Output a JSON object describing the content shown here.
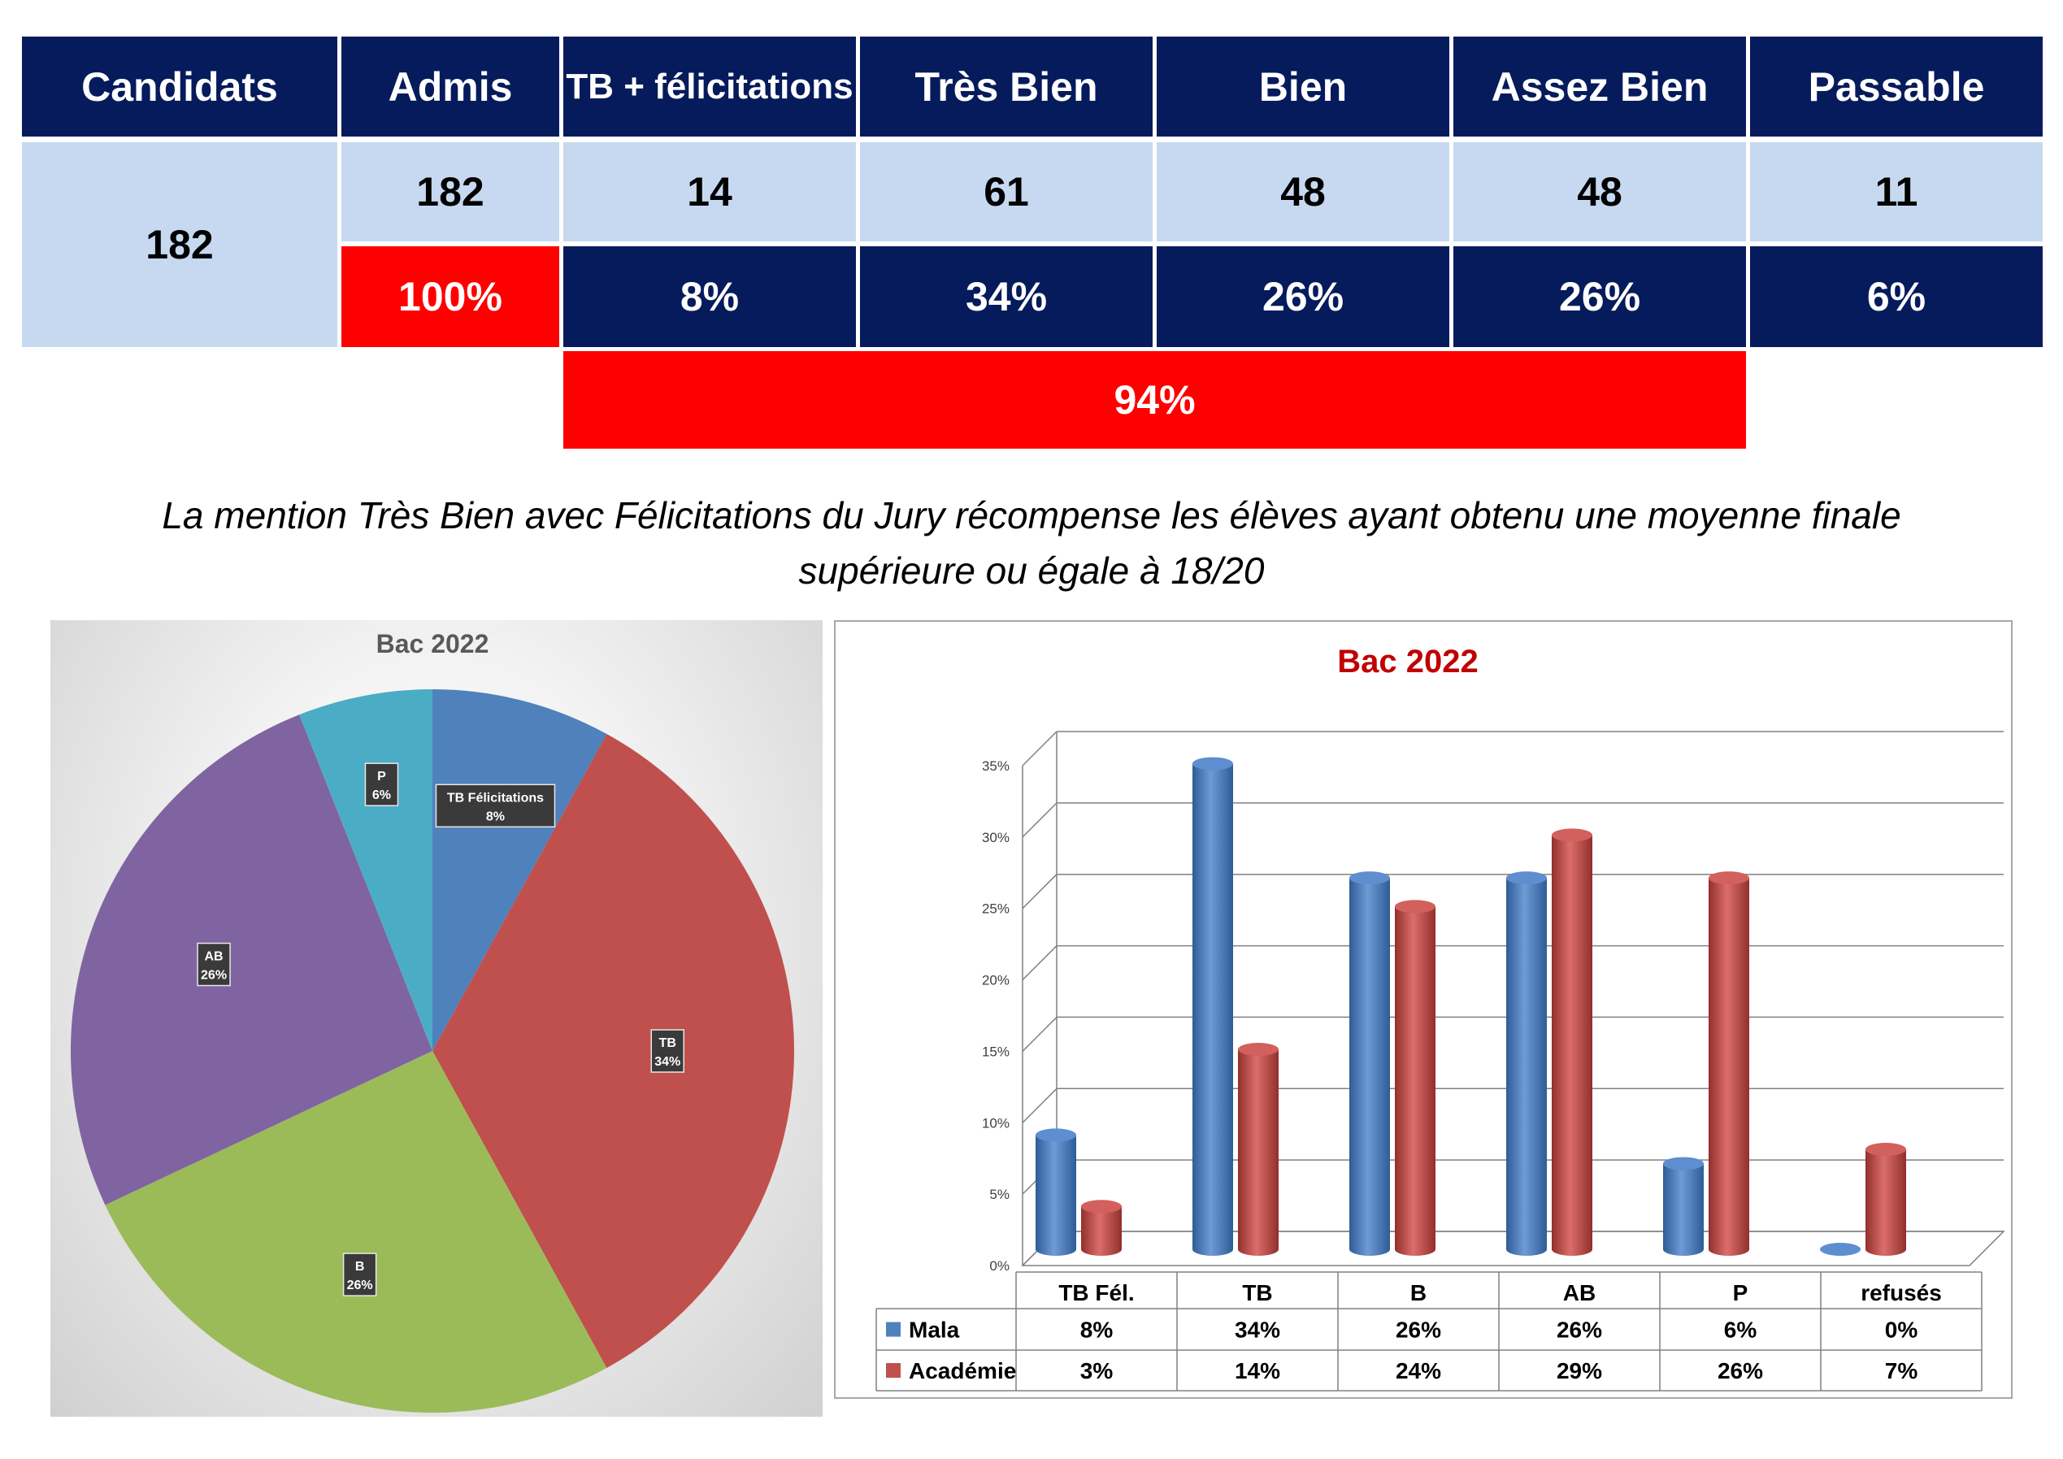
{
  "table": {
    "headers": [
      "Candidats",
      "Admis",
      "TB + félicitations",
      "Très Bien",
      "Bien",
      "Assez Bien",
      "Passable"
    ],
    "candidats": "182",
    "counts": [
      "182",
      "14",
      "61",
      "48",
      "48",
      "11"
    ],
    "percents": [
      "100%",
      "8%",
      "34%",
      "26%",
      "26%",
      "6%"
    ],
    "mention_total": "94%"
  },
  "caption": {
    "line1": "La mention Très Bien avec Félicitations du Jury récompense les élèves ayant obtenu une moyenne finale",
    "line2": "supérieure ou égale à 18/20"
  },
  "colors": {
    "navy": "#061B5C",
    "light_blue": "#C6D9F1",
    "red": "#FF0000",
    "pie_tbf": "#4F81BD",
    "pie_tb": "#C0504D",
    "pie_b": "#9BBB59",
    "pie_ab": "#8064A2",
    "pie_p": "#4BACC6",
    "bar_mala": "#4F81BD",
    "bar_academie": "#C0504D"
  },
  "chart_data": [
    {
      "type": "pie",
      "title": "Bac 2022",
      "slices": [
        {
          "label": "TB Félicitations",
          "value": 8,
          "display": "8%"
        },
        {
          "label": "TB",
          "value": 34,
          "display": "34%"
        },
        {
          "label": "B",
          "value": 26,
          "display": "26%"
        },
        {
          "label": "AB",
          "value": 26,
          "display": "26%"
        },
        {
          "label": "P",
          "value": 6,
          "display": "6%"
        }
      ]
    },
    {
      "type": "bar",
      "title": "Bac 2022",
      "categories": [
        "TB Fél.",
        "TB",
        "B",
        "AB",
        "P",
        "refusés"
      ],
      "series": [
        {
          "name": "Mala",
          "values": [
            8,
            34,
            26,
            26,
            6,
            0
          ],
          "labels": [
            "8%",
            "34%",
            "26%",
            "26%",
            "6%",
            "0%"
          ]
        },
        {
          "name": "Académie",
          "values": [
            3,
            14,
            24,
            29,
            26,
            7
          ],
          "labels": [
            "3%",
            "14%",
            "24%",
            "29%",
            "26%",
            "7%"
          ]
        }
      ],
      "ylim": [
        0,
        35
      ],
      "yticks": [
        "0%",
        "5%",
        "10%",
        "15%",
        "20%",
        "25%",
        "30%",
        "35%"
      ],
      "legend": "data-table-left"
    }
  ]
}
